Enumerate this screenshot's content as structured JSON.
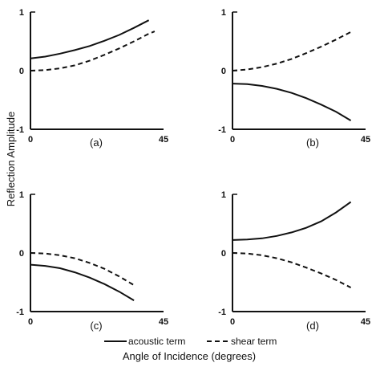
{
  "figure": {
    "ylabel": "Reflection Amplitude",
    "xlabel": "Angle of Incidence (degrees)",
    "legend": [
      {
        "label": "acoustic term",
        "style": "solid"
      },
      {
        "label": "shear term",
        "style": "dashed"
      }
    ]
  },
  "chart_data": [
    {
      "type": "line",
      "panel_label": "(a)",
      "xlim": [
        0,
        45
      ],
      "ylim": [
        -1,
        1
      ],
      "xticks": [
        "0",
        "45"
      ],
      "yticks": [
        "1",
        "0",
        "-1"
      ],
      "series": [
        {
          "name": "acoustic term",
          "style": "solid",
          "x": [
            0,
            5,
            10,
            15,
            20,
            25,
            30,
            35,
            40
          ],
          "y": [
            0.21,
            0.24,
            0.29,
            0.35,
            0.42,
            0.51,
            0.61,
            0.73,
            0.86
          ]
        },
        {
          "name": "shear term",
          "style": "dashed",
          "x": [
            0,
            5,
            10,
            15,
            20,
            25,
            30,
            35,
            40,
            42
          ],
          "y": [
            0.0,
            0.01,
            0.04,
            0.09,
            0.17,
            0.27,
            0.38,
            0.5,
            0.63,
            0.67
          ]
        }
      ]
    },
    {
      "type": "line",
      "panel_label": "(b)",
      "xlim": [
        0,
        45
      ],
      "ylim": [
        -1,
        1
      ],
      "xticks": [
        "0",
        "45"
      ],
      "yticks": [
        "1",
        "0",
        "-1"
      ],
      "series": [
        {
          "name": "acoustic term",
          "style": "solid",
          "x": [
            0,
            5,
            10,
            15,
            20,
            25,
            30,
            35,
            40
          ],
          "y": [
            -0.22,
            -0.23,
            -0.26,
            -0.31,
            -0.38,
            -0.47,
            -0.58,
            -0.7,
            -0.85
          ]
        },
        {
          "name": "shear term",
          "style": "dashed",
          "x": [
            0,
            5,
            10,
            15,
            20,
            25,
            30,
            35,
            40
          ],
          "y": [
            0.0,
            0.02,
            0.06,
            0.12,
            0.2,
            0.3,
            0.41,
            0.53,
            0.66
          ]
        }
      ]
    },
    {
      "type": "line",
      "panel_label": "(c)",
      "xlim": [
        0,
        45
      ],
      "ylim": [
        -1,
        1
      ],
      "xticks": [
        "0",
        "45"
      ],
      "yticks": [
        "1",
        "0",
        "-1"
      ],
      "series": [
        {
          "name": "acoustic term",
          "style": "solid",
          "x": [
            0,
            5,
            10,
            15,
            20,
            25,
            30,
            35
          ],
          "y": [
            -0.2,
            -0.22,
            -0.26,
            -0.33,
            -0.42,
            -0.53,
            -0.66,
            -0.81
          ]
        },
        {
          "name": "shear term",
          "style": "dashed",
          "x": [
            0,
            5,
            10,
            15,
            20,
            25,
            30,
            35
          ],
          "y": [
            0.0,
            -0.01,
            -0.04,
            -0.09,
            -0.17,
            -0.27,
            -0.4,
            -0.55
          ]
        }
      ]
    },
    {
      "type": "line",
      "panel_label": "(d)",
      "xlim": [
        0,
        45
      ],
      "ylim": [
        -1,
        1
      ],
      "xticks": [
        "0",
        "45"
      ],
      "yticks": [
        "1",
        "0",
        "-1"
      ],
      "series": [
        {
          "name": "acoustic term",
          "style": "solid",
          "x": [
            0,
            5,
            10,
            15,
            20,
            25,
            30,
            35,
            40
          ],
          "y": [
            0.22,
            0.23,
            0.25,
            0.29,
            0.35,
            0.43,
            0.54,
            0.69,
            0.87
          ]
        },
        {
          "name": "shear term",
          "style": "dashed",
          "x": [
            0,
            5,
            10,
            15,
            20,
            25,
            30,
            35,
            40
          ],
          "y": [
            0.0,
            -0.01,
            -0.04,
            -0.09,
            -0.16,
            -0.25,
            -0.35,
            -0.46,
            -0.59
          ]
        }
      ]
    }
  ]
}
